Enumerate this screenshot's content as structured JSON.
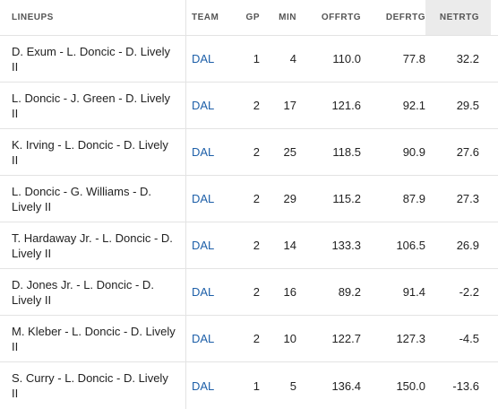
{
  "columns": {
    "lineups": "LINEUPS",
    "team": "TEAM",
    "gp": "GP",
    "min": "MIN",
    "offrtg": "OFFRTG",
    "defrtg": "DEFRTG",
    "netrtg": "NETRTG"
  },
  "rows": [
    {
      "lineup": "D. Exum - L. Doncic - D. Lively II",
      "team": "DAL",
      "gp": "1",
      "min": "4",
      "offrtg": "110.0",
      "defrtg": "77.8",
      "netrtg": "32.2"
    },
    {
      "lineup": "L. Doncic - J. Green - D. Lively II",
      "team": "DAL",
      "gp": "2",
      "min": "17",
      "offrtg": "121.6",
      "defrtg": "92.1",
      "netrtg": "29.5"
    },
    {
      "lineup": "K. Irving - L. Doncic - D. Lively II",
      "team": "DAL",
      "gp": "2",
      "min": "25",
      "offrtg": "118.5",
      "defrtg": "90.9",
      "netrtg": "27.6"
    },
    {
      "lineup": "L. Doncic - G. Williams - D. Lively II",
      "team": "DAL",
      "gp": "2",
      "min": "29",
      "offrtg": "115.2",
      "defrtg": "87.9",
      "netrtg": "27.3"
    },
    {
      "lineup": "T. Hardaway Jr. - L. Doncic - D. Lively II",
      "team": "DAL",
      "gp": "2",
      "min": "14",
      "offrtg": "133.3",
      "defrtg": "106.5",
      "netrtg": "26.9"
    },
    {
      "lineup": "D. Jones Jr. - L. Doncic - D. Lively II",
      "team": "DAL",
      "gp": "2",
      "min": "16",
      "offrtg": "89.2",
      "defrtg": "91.4",
      "netrtg": "-2.2"
    },
    {
      "lineup": "M. Kleber - L. Doncic - D. Lively II",
      "team": "DAL",
      "gp": "2",
      "min": "10",
      "offrtg": "122.7",
      "defrtg": "127.3",
      "netrtg": "-4.5"
    },
    {
      "lineup": "S. Curry - L. Doncic - D. Lively II",
      "team": "DAL",
      "gp": "1",
      "min": "5",
      "offrtg": "136.4",
      "defrtg": "150.0",
      "netrtg": "-13.6"
    }
  ],
  "colors": {
    "link": "#1d5fa8",
    "sorted_header_bg": "#ebebeb",
    "divider": "#e3e3e3"
  }
}
